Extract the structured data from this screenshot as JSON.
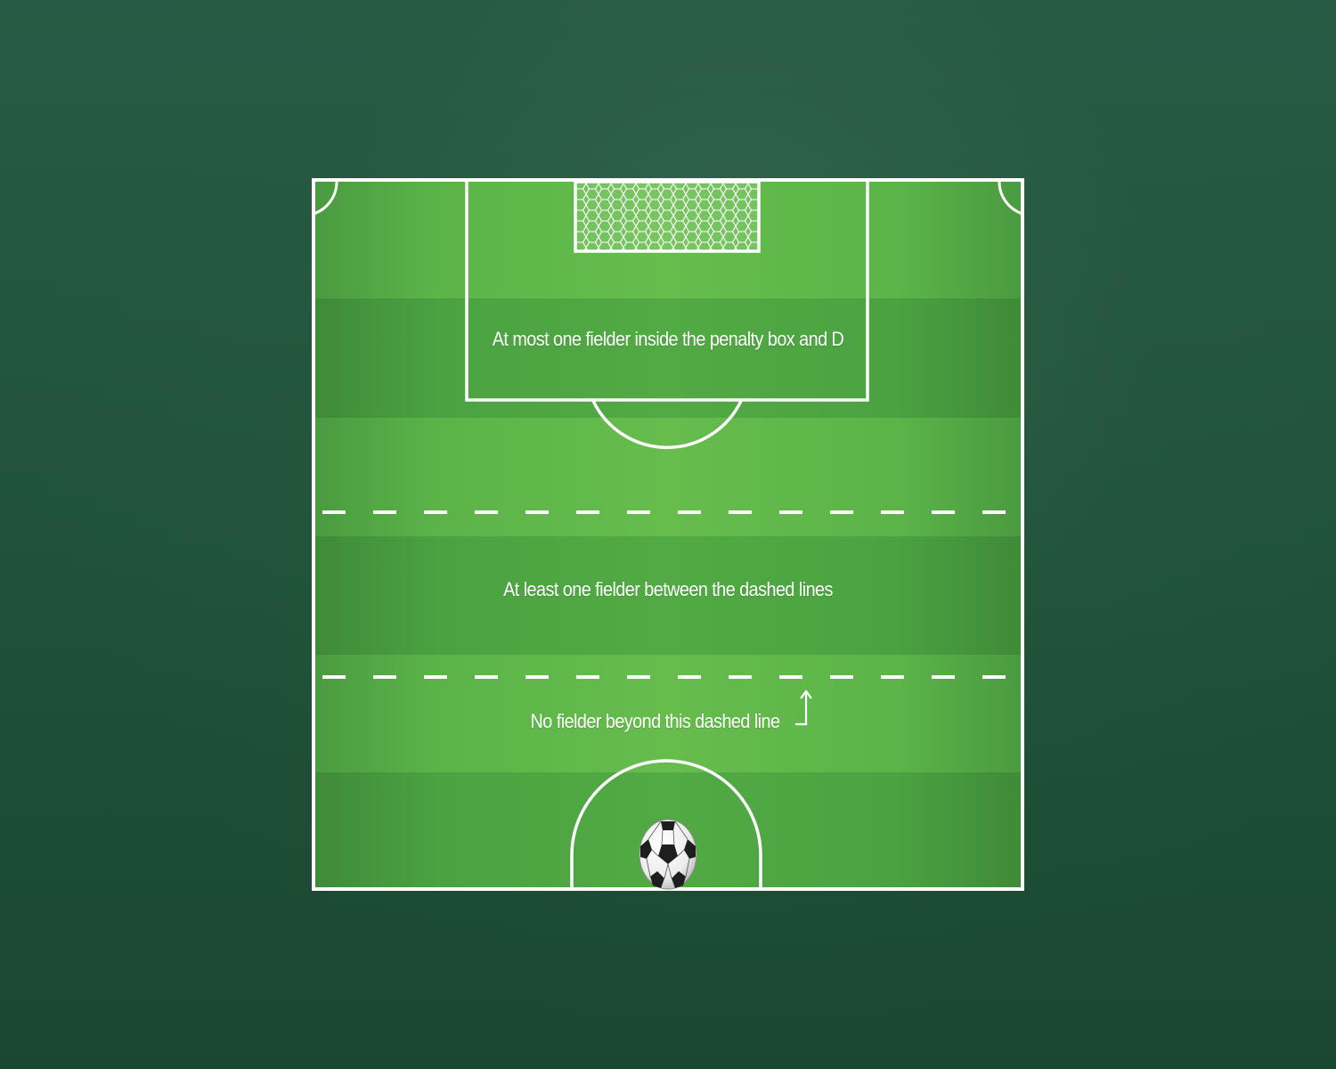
{
  "diagram": {
    "labels": {
      "penalty_box": "At most one fielder inside the penalty box and D",
      "between_lines": "At least one fielder between the dashed lines",
      "beyond_line": "No fielder beyond this dashed line"
    },
    "icons": {
      "goal": "goal-net-icon",
      "ball": "soccer-ball-icon",
      "arrow": "up-arrow-icon"
    },
    "colors": {
      "background": "#1f5238",
      "pitch_light": "#66bd4c",
      "pitch_dark": "#52aa44",
      "lines": "#ffffff"
    }
  }
}
